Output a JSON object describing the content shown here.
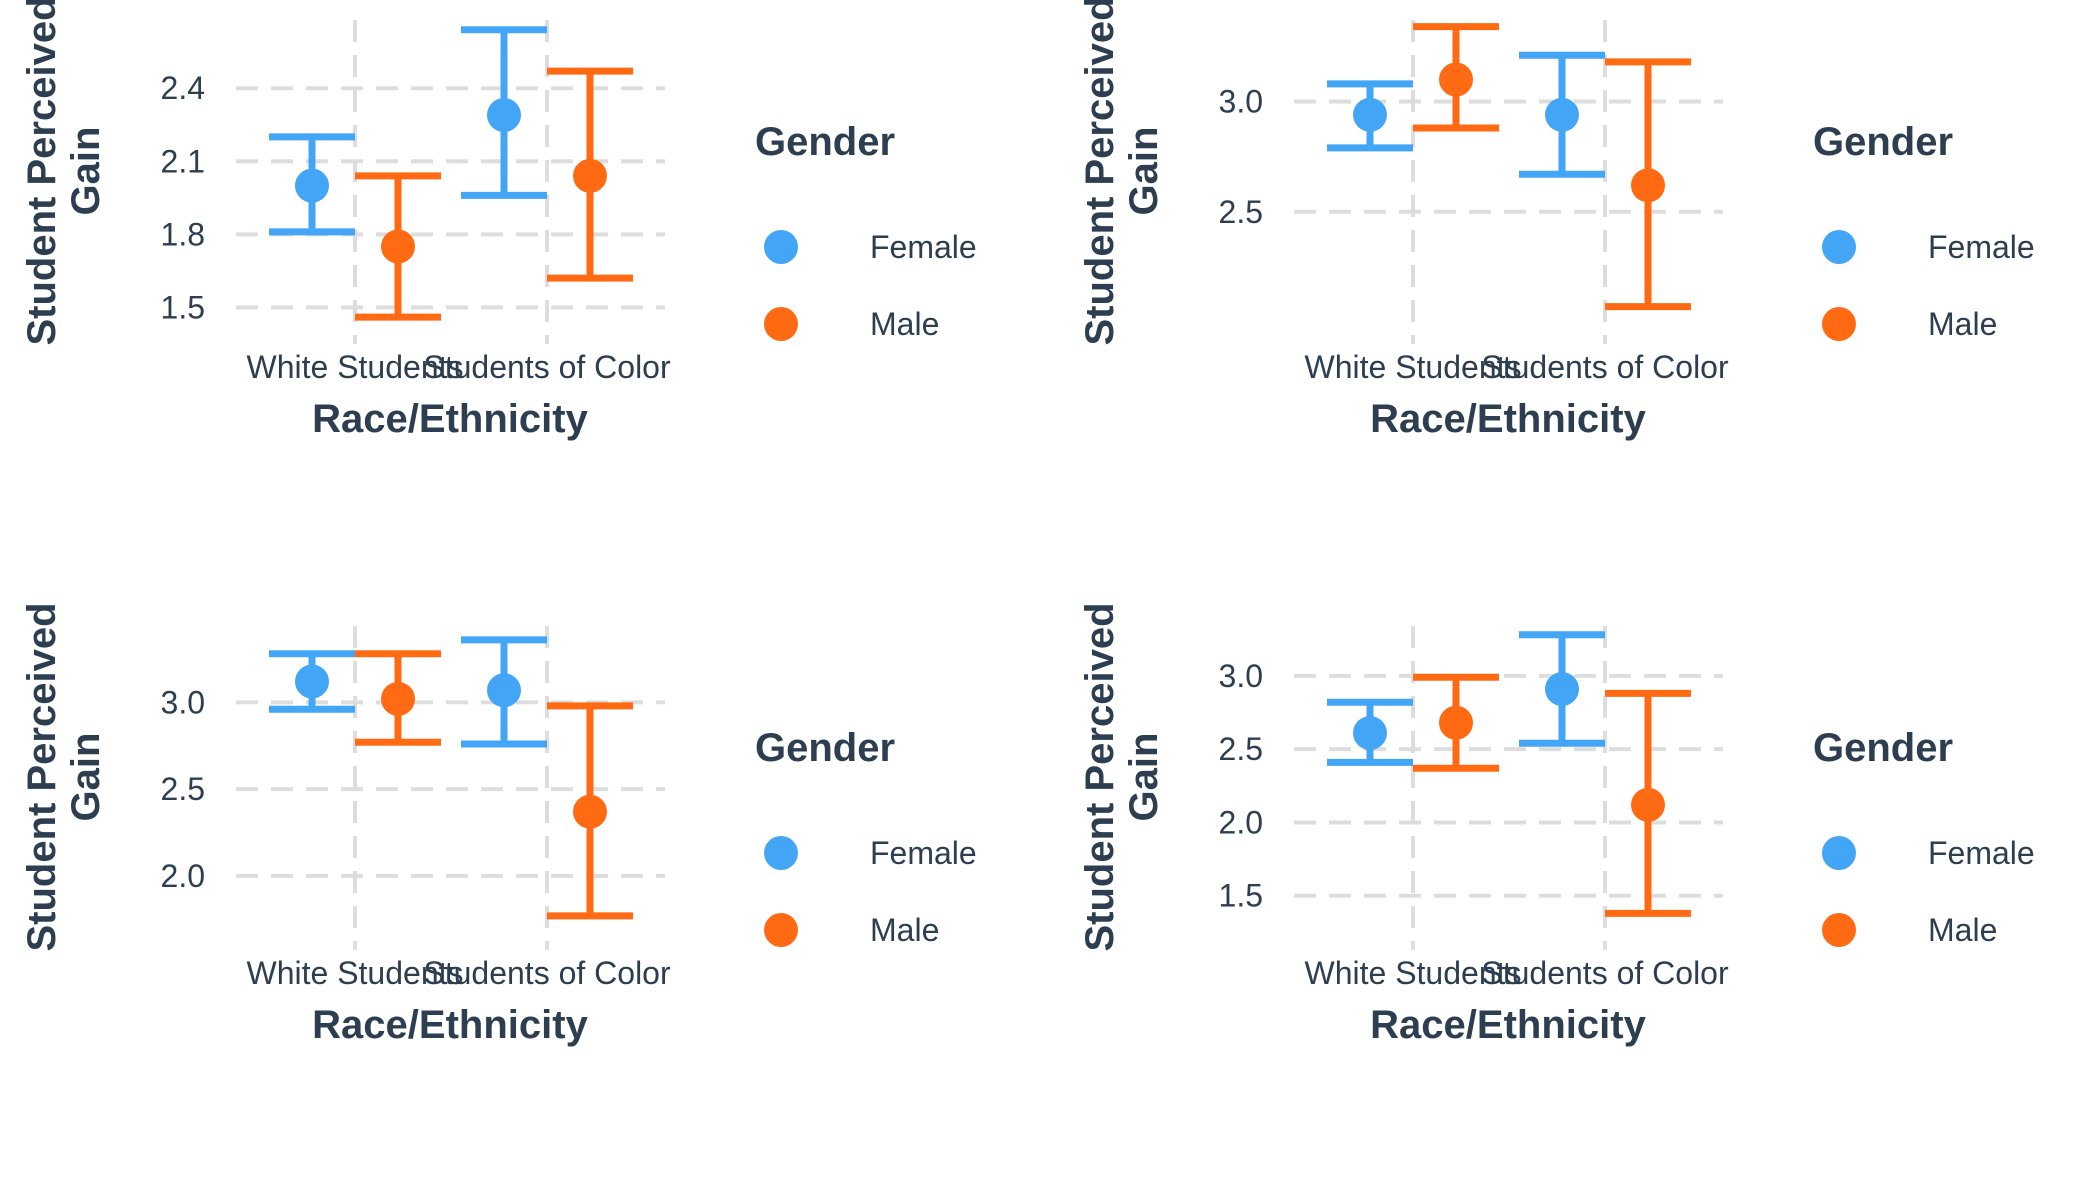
{
  "colors": {
    "female": "#42A5F5",
    "male": "#FF6A13",
    "text": "#2C3E50",
    "grid": "#DDDDDD"
  },
  "chart_data": [
    {
      "type": "errorbar",
      "categories": [
        "White Students",
        "Students of Color"
      ],
      "xlabel": "Race/Ethnicity",
      "ylabel": "Student Perceived Gain",
      "ylim": [
        1.44,
        2.68
      ],
      "yticks": [
        "1.5",
        "1.8",
        "2.1",
        "2.4"
      ],
      "legend_title": "Gender",
      "series": [
        {
          "name": "Female",
          "color": "#42A5F5",
          "mean": [
            2.0,
            2.29
          ],
          "lower": [
            1.81,
            1.96
          ],
          "upper": [
            2.2,
            2.64
          ]
        },
        {
          "name": "Male",
          "color": "#FF6A13",
          "mean": [
            1.75,
            2.04
          ],
          "lower": [
            1.46,
            1.62
          ],
          "upper": [
            2.04,
            2.47
          ]
        }
      ]
    },
    {
      "type": "errorbar",
      "categories": [
        "White Students",
        "Students of Color"
      ],
      "xlabel": "Race/Ethnicity",
      "ylabel": "Student Perceived Gain",
      "ylim": [
        2.0,
        3.37
      ],
      "yticks": [
        "2.5",
        "3.0"
      ],
      "legend_title": "Gender",
      "series": [
        {
          "name": "Female",
          "color": "#42A5F5",
          "mean": [
            2.94,
            2.94
          ],
          "lower": [
            2.79,
            2.67
          ],
          "upper": [
            3.08,
            3.21
          ]
        },
        {
          "name": "Male",
          "color": "#FF6A13",
          "mean": [
            3.1,
            2.62
          ],
          "lower": [
            2.88,
            2.07
          ],
          "upper": [
            3.34,
            3.18
          ]
        }
      ]
    },
    {
      "type": "errorbar",
      "categories": [
        "White Students",
        "Students of Color"
      ],
      "xlabel": "Race/Ethnicity",
      "ylabel": "Student Perceived Gain",
      "ylim": [
        1.7,
        3.44
      ],
      "yticks": [
        "2.0",
        "2.5",
        "3.0"
      ],
      "legend_title": "Gender",
      "series": [
        {
          "name": "Female",
          "color": "#42A5F5",
          "mean": [
            3.12,
            3.07
          ],
          "lower": [
            2.96,
            2.76
          ],
          "upper": [
            3.28,
            3.36
          ]
        },
        {
          "name": "Male",
          "color": "#FF6A13",
          "mean": [
            3.02,
            2.37
          ],
          "lower": [
            2.77,
            1.77
          ],
          "upper": [
            3.28,
            2.98
          ]
        }
      ]
    },
    {
      "type": "errorbar",
      "categories": [
        "White Students",
        "Students of Color"
      ],
      "xlabel": "Race/Ethnicity",
      "ylabel": "Student Perceived Gain",
      "ylim": [
        1.28,
        3.34
      ],
      "yticks": [
        "1.5",
        "2.0",
        "2.5",
        "3.0"
      ],
      "legend_title": "Gender",
      "series": [
        {
          "name": "Female",
          "color": "#42A5F5",
          "mean": [
            2.61,
            2.91
          ],
          "lower": [
            2.41,
            2.54
          ],
          "upper": [
            2.82,
            3.28
          ]
        },
        {
          "name": "Male",
          "color": "#FF6A13",
          "mean": [
            2.68,
            2.12
          ],
          "lower": [
            2.37,
            1.38
          ],
          "upper": [
            2.99,
            2.88
          ]
        }
      ]
    }
  ]
}
